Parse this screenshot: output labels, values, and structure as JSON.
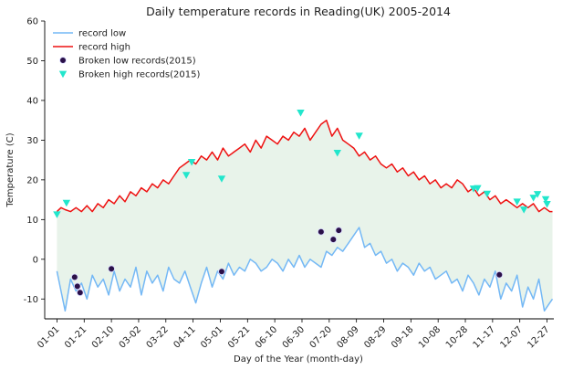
{
  "chart_data": {
    "type": "line",
    "title": "Daily temperature records in Reading(UK) 2005-2014",
    "xlabel": "Day of the Year (month-day)",
    "ylabel": "Temperature (C)",
    "xlim": [
      -9,
      365
    ],
    "ylim": [
      -15,
      60
    ],
    "yticks": [
      -10,
      0,
      10,
      20,
      30,
      40,
      50,
      60
    ],
    "xticks": [
      {
        "day": 0,
        "label": "01-01"
      },
      {
        "day": 20,
        "label": "01-21"
      },
      {
        "day": 40,
        "label": "02-10"
      },
      {
        "day": 60,
        "label": "03-02"
      },
      {
        "day": 80,
        "label": "03-22"
      },
      {
        "day": 100,
        "label": "04-11"
      },
      {
        "day": 120,
        "label": "05-01"
      },
      {
        "day": 140,
        "label": "05-21"
      },
      {
        "day": 160,
        "label": "06-10"
      },
      {
        "day": 180,
        "label": "06-30"
      },
      {
        "day": 200,
        "label": "07-20"
      },
      {
        "day": 220,
        "label": "08-09"
      },
      {
        "day": 240,
        "label": "08-29"
      },
      {
        "day": 260,
        "label": "09-18"
      },
      {
        "day": 280,
        "label": "10-08"
      },
      {
        "day": 300,
        "label": "10-28"
      },
      {
        "day": 320,
        "label": "11-17"
      },
      {
        "day": 340,
        "label": "12-07"
      },
      {
        "day": 360,
        "label": "12-27"
      }
    ],
    "legend_position": "upper-left",
    "grid": false,
    "fill_between": {
      "color": "#e8f3ea"
    },
    "series": [
      {
        "name": "record low",
        "color": "#74b8f5",
        "x": [
          0,
          3,
          6,
          10,
          14,
          18,
          22,
          26,
          30,
          34,
          38,
          42,
          46,
          50,
          54,
          58,
          62,
          66,
          70,
          74,
          78,
          82,
          86,
          90,
          94,
          98,
          102,
          106,
          110,
          114,
          118,
          122,
          126,
          130,
          134,
          138,
          142,
          146,
          150,
          154,
          158,
          162,
          166,
          170,
          174,
          178,
          182,
          186,
          190,
          194,
          198,
          202,
          206,
          210,
          214,
          218,
          222,
          226,
          230,
          234,
          238,
          242,
          246,
          250,
          254,
          258,
          262,
          266,
          270,
          274,
          278,
          282,
          286,
          290,
          294,
          298,
          302,
          306,
          310,
          314,
          318,
          322,
          326,
          330,
          334,
          338,
          342,
          346,
          350,
          354,
          358,
          362,
          364
        ],
        "y": [
          -3,
          -8,
          -13,
          -5,
          -8,
          -6,
          -10,
          -4,
          -7,
          -5,
          -9,
          -3,
          -8,
          -5,
          -7,
          -2,
          -9,
          -3,
          -6,
          -4,
          -8,
          -2,
          -5,
          -6,
          -3,
          -7,
          -11,
          -6,
          -2,
          -7,
          -3,
          -5,
          -1,
          -4,
          -2,
          -3,
          0,
          -1,
          -3,
          -2,
          0,
          -1,
          -3,
          0,
          -2,
          1,
          -2,
          0,
          -1,
          -2,
          2,
          1,
          3,
          2,
          4,
          6,
          8,
          3,
          4,
          1,
          2,
          -1,
          0,
          -3,
          -1,
          -2,
          -4,
          -1,
          -3,
          -2,
          -5,
          -4,
          -3,
          -6,
          -5,
          -8,
          -4,
          -6,
          -9,
          -5,
          -7,
          -3,
          -10,
          -6,
          -8,
          -4,
          -12,
          -7,
          -10,
          -5,
          -13,
          -11,
          -10
        ]
      },
      {
        "name": "record high",
        "color": "#ee1111",
        "x": [
          0,
          3,
          6,
          10,
          14,
          18,
          22,
          26,
          30,
          34,
          38,
          42,
          46,
          50,
          54,
          58,
          62,
          66,
          70,
          74,
          78,
          82,
          86,
          90,
          94,
          98,
          102,
          106,
          110,
          114,
          118,
          122,
          126,
          130,
          134,
          138,
          142,
          146,
          150,
          154,
          158,
          162,
          166,
          170,
          174,
          178,
          182,
          186,
          190,
          194,
          198,
          202,
          206,
          210,
          214,
          218,
          222,
          226,
          230,
          234,
          238,
          242,
          246,
          250,
          254,
          258,
          262,
          266,
          270,
          274,
          278,
          282,
          286,
          290,
          294,
          298,
          302,
          306,
          310,
          314,
          318,
          322,
          326,
          330,
          334,
          338,
          342,
          346,
          350,
          354,
          358,
          362,
          364
        ],
        "y": [
          12,
          13,
          12.5,
          12,
          13,
          12,
          13.5,
          12,
          14,
          13,
          15,
          14,
          16,
          14.5,
          17,
          16,
          18,
          17,
          19,
          18,
          20,
          19,
          21,
          23,
          24,
          25,
          24,
          26,
          25,
          27,
          25,
          28,
          26,
          27,
          28,
          29,
          27,
          30,
          28,
          31,
          30,
          29,
          31,
          30,
          32,
          31,
          33,
          30,
          32,
          34,
          35,
          31,
          33,
          30,
          29,
          28,
          26,
          27,
          25,
          26,
          24,
          23,
          24,
          22,
          23,
          21,
          22,
          20,
          21,
          19,
          20,
          18,
          19,
          18,
          20,
          19,
          17,
          18,
          16,
          17,
          15,
          16,
          14,
          15,
          14,
          13,
          14,
          13,
          14,
          12,
          13,
          12,
          12
        ]
      }
    ],
    "scatter": [
      {
        "name": "Broken low records(2015)",
        "color": "#2b1048",
        "marker": "circle",
        "points": [
          [
            13,
            -4.5
          ],
          [
            15,
            -6.8
          ],
          [
            17,
            -8.4
          ],
          [
            40,
            -2.4
          ],
          [
            121,
            -3.1
          ],
          [
            194,
            6.9
          ],
          [
            203,
            5
          ],
          [
            207,
            7.3
          ],
          [
            325,
            -3.9
          ]
        ]
      },
      {
        "name": "Broken high records(2015)",
        "color": "#22e6cc",
        "marker": "triangle-down",
        "points": [
          [
            0,
            11.3
          ],
          [
            7,
            14.2
          ],
          [
            95,
            21.2
          ],
          [
            99,
            24.5
          ],
          [
            121,
            20.3
          ],
          [
            179,
            36.9
          ],
          [
            206,
            26.8
          ],
          [
            222,
            31.1
          ],
          [
            306,
            17.8
          ],
          [
            309,
            17.9
          ],
          [
            316,
            16.5
          ],
          [
            338,
            14.5
          ],
          [
            343,
            12.5
          ],
          [
            350,
            15.5
          ],
          [
            353,
            16.4
          ],
          [
            359,
            15.1
          ],
          [
            360,
            13.9
          ]
        ]
      }
    ]
  }
}
